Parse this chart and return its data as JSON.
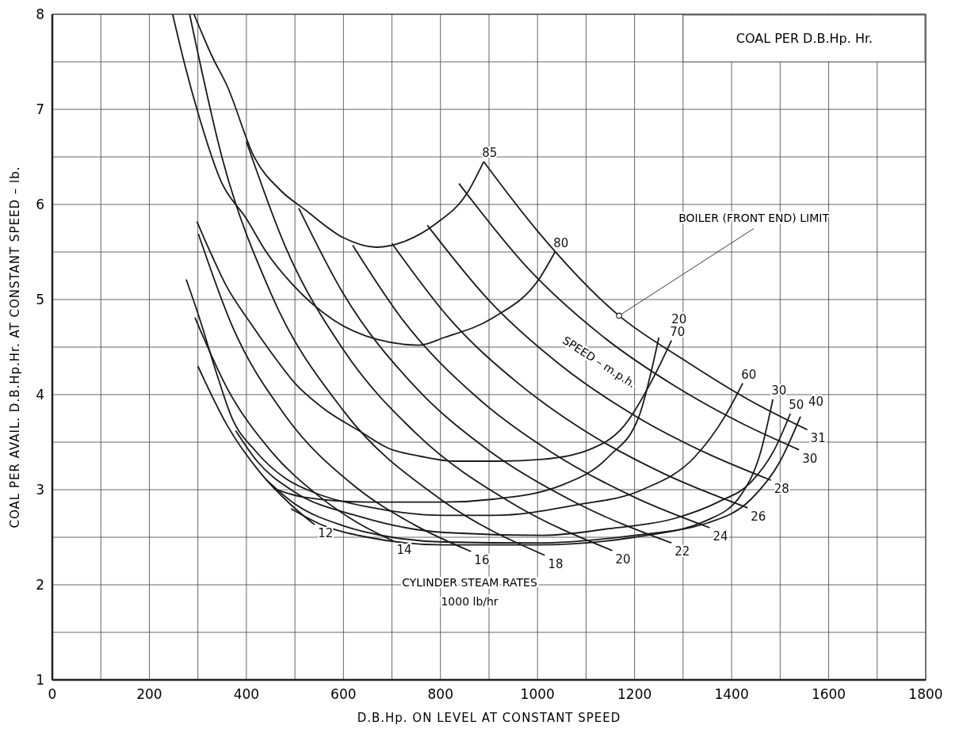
{
  "chart_data": {
    "type": "line",
    "title": "COAL PER D.B.Hp. Hr.",
    "xlabel": "D.B.Hp. ON LEVEL AT CONSTANT SPEED",
    "ylabel": "COAL PER AVAIL. D.B.Hp.Hr. AT CONSTANT SPEED – lb.",
    "xlim": [
      0,
      1800
    ],
    "xticks": [
      0,
      {
        "value": 100,
        "label": null
      },
      200,
      {
        "value": 300,
        "label": null
      },
      400,
      {
        "value": 500,
        "label": null
      },
      600,
      {
        "value": 700,
        "label": null
      },
      800,
      {
        "value": 900,
        "label": null
      },
      1000,
      {
        "value": 1100,
        "label": null
      },
      1200,
      {
        "value": 1300,
        "label": null
      },
      1400,
      {
        "value": 1500,
        "label": null
      },
      1600,
      {
        "value": 1700,
        "label": null
      },
      1800
    ],
    "ylim": [
      1,
      8
    ],
    "yticks": [
      1,
      {
        "value": 1.5,
        "label": null
      },
      2,
      {
        "value": 2.5,
        "label": null
      },
      3,
      {
        "value": 3.5,
        "label": null
      },
      4,
      {
        "value": 4.5,
        "label": null
      },
      5,
      {
        "value": 5.5,
        "label": null
      },
      6,
      {
        "value": 6.5,
        "label": null
      },
      7,
      {
        "value": 7.5,
        "label": null
      },
      8
    ],
    "grid": true,
    "marker": "none",
    "line_style": "solid",
    "annotations": [
      {
        "text": "BOILER (FRONT END) LIMIT",
        "x": 1168,
        "y": 4.83
      },
      "SPEED – m.p.h.",
      "CYLINDER STEAM RATES",
      "1000 lb/hr"
    ],
    "series": [
      {
        "name": "85",
        "color": "#1a1a1a",
        "x": [
          292,
          330,
          360,
          417,
          470,
          522,
          600,
          668,
          730,
          791,
          855,
          889
        ],
        "values": [
          8,
          7.55,
          7.25,
          6.49,
          6.15,
          5.94,
          5.65,
          5.55,
          5.62,
          5.8,
          6.12,
          6.45
        ]
      },
      {
        "name": "80",
        "color": "#1a1a1a",
        "x": [
          248,
          272,
          301,
          348,
          400,
          441,
          493,
          581,
          670,
          756,
          807,
          909,
          1005,
          1036
        ],
        "values": [
          8,
          7.49,
          6.95,
          6.24,
          5.85,
          5.5,
          5.17,
          4.78,
          4.58,
          4.52,
          4.6,
          4.81,
          5.23,
          5.5
        ]
      },
      {
        "name": "70",
        "color": "#1a1a1a",
        "x": [
          298,
          330,
          359,
          406,
          450,
          500,
          560,
          632,
          691,
          760,
          827,
          920,
          1011,
          1106,
          1178,
          1243,
          1276
        ],
        "values": [
          5.82,
          5.45,
          5.14,
          4.77,
          4.45,
          4.12,
          3.85,
          3.62,
          3.44,
          3.35,
          3.3,
          3.3,
          3.32,
          3.42,
          3.67,
          4.22,
          4.57
        ]
      },
      {
        "name": "60",
        "color": "#1a1a1a",
        "x": [
          276,
          301,
          340,
          369,
          420,
          480,
          550,
          650,
          807,
          909,
          1080,
          1216,
          1325,
          1386,
          1423
        ],
        "values": [
          5.21,
          4.84,
          4.2,
          3.77,
          3.4,
          3.12,
          2.95,
          2.82,
          2.73,
          2.73,
          2.84,
          3.0,
          3.35,
          3.77,
          4.12
        ]
      },
      {
        "name": "50",
        "color": "#1a1a1a",
        "x": [
          378,
          422,
          498,
          632,
          807,
          1011,
          1147,
          1284,
          1372,
          1440,
          1488,
          1521
        ],
        "values": [
          3.62,
          3.3,
          2.98,
          2.72,
          2.55,
          2.52,
          2.59,
          2.7,
          2.87,
          3.08,
          3.42,
          3.8
        ]
      },
      {
        "name": "40",
        "color": "#1a1a1a",
        "x": [
          440,
          500,
          600,
          700,
          807,
          1000,
          1200,
          1350,
          1440,
          1500,
          1542
        ],
        "values": [
          3.11,
          2.85,
          2.62,
          2.5,
          2.45,
          2.44,
          2.52,
          2.65,
          2.9,
          3.3,
          3.77
        ]
      },
      {
        "name": "30",
        "color": "#1a1a1a",
        "x": [
          492,
          560,
          650,
          807,
          1000,
          1200,
          1350,
          1420,
          1460,
          1485
        ],
        "values": [
          2.8,
          2.62,
          2.5,
          2.42,
          2.42,
          2.5,
          2.68,
          2.95,
          3.4,
          3.95
        ]
      },
      {
        "name": "20",
        "color": "#1a1a1a",
        "x": [
          457,
          520,
          650,
          807,
          909,
          1046,
          1147,
          1209,
          1250
        ],
        "values": [
          3.01,
          2.92,
          2.87,
          2.87,
          2.9,
          3.04,
          3.35,
          3.77,
          4.6
        ]
      },
      {
        "name": "12",
        "color": "#1a1a1a",
        "x": [
          300,
          360,
          430,
          490,
          541
        ],
        "values": [
          4.3,
          3.68,
          3.17,
          2.85,
          2.63
        ]
      },
      {
        "name": "14",
        "color": "#1a1a1a",
        "x": [
          294,
          360,
          450,
          550,
          630,
          703
        ],
        "values": [
          4.81,
          4.07,
          3.41,
          2.93,
          2.65,
          2.46
        ]
      },
      {
        "name": "16",
        "color": "#1a1a1a",
        "x": [
          301,
          370,
          480,
          620,
          750,
          863
        ],
        "values": [
          5.69,
          4.73,
          3.78,
          3.05,
          2.62,
          2.35
        ]
      },
      {
        "name": "18",
        "color": "#1a1a1a",
        "x": [
          283,
          350,
          450,
          600,
          800,
          1015
        ],
        "values": [
          8,
          6.49,
          5.07,
          3.83,
          2.9,
          2.31
        ]
      },
      {
        "name": "20",
        "color": "#1a1a1a",
        "x": [
          400,
          480,
          600,
          750,
          950,
          1154
        ],
        "values": [
          6.66,
          5.56,
          4.47,
          3.59,
          2.85,
          2.36
        ]
      },
      {
        "name": "22",
        "color": "#1a1a1a",
        "x": [
          508,
          600,
          750,
          900,
          1080,
          1276
        ],
        "values": [
          5.96,
          5.06,
          4.07,
          3.41,
          2.86,
          2.44
        ]
      },
      {
        "name": "24",
        "color": "#1a1a1a",
        "x": [
          619,
          720,
          880,
          1030,
          1200,
          1355
        ],
        "values": [
          5.57,
          4.8,
          3.95,
          3.39,
          2.92,
          2.6
        ]
      },
      {
        "name": "26",
        "color": "#1a1a1a",
        "x": [
          700,
          820,
          960,
          1100,
          1260,
          1433
        ],
        "values": [
          5.59,
          4.79,
          4.12,
          3.61,
          3.17,
          2.81
        ]
      },
      {
        "name": "28",
        "color": "#1a1a1a",
        "x": [
          773,
          900,
          1050,
          1200,
          1350,
          1481
        ],
        "values": [
          5.78,
          4.99,
          4.3,
          3.78,
          3.38,
          3.1
        ]
      },
      {
        "name": "30",
        "color": "#1a1a1a",
        "x": [
          838,
          980,
          1130,
          1280,
          1420,
          1539
        ],
        "values": [
          6.22,
          5.33,
          4.63,
          4.1,
          3.7,
          3.42
        ]
      },
      {
        "name": "31",
        "color": "#1a1a1a",
        "x": [
          889,
          1000,
          1168,
          1300,
          1430,
          1556
        ],
        "values": [
          6.45,
          5.72,
          4.83,
          4.37,
          3.96,
          3.63
        ]
      }
    ]
  }
}
